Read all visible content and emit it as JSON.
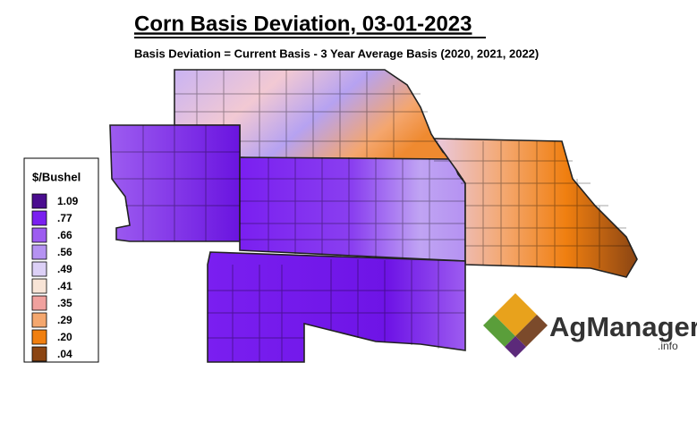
{
  "title": "Corn Basis Deviation, 03-01-2023",
  "subtitle": "Basis Deviation = Current Basis - 3 Year Average Basis (2020, 2021, 2022)",
  "legend": {
    "title": "$/Bushel",
    "items": [
      {
        "label": "1.09",
        "color": "#4a0d8f"
      },
      {
        "label": ".77",
        "color": "#7a1ff0"
      },
      {
        "label": ".66",
        "color": "#9d5cf0"
      },
      {
        "label": ".56",
        "color": "#b592f2"
      },
      {
        "label": ".49",
        "color": "#dcd0f6"
      },
      {
        "label": ".41",
        "color": "#f8e4d6"
      },
      {
        "label": ".35",
        "color": "#f0a19e"
      },
      {
        "label": ".29",
        "color": "#f4a76e"
      },
      {
        "label": ".20",
        "color": "#f07f10"
      },
      {
        "label": ".04",
        "color": "#8b4513"
      }
    ]
  },
  "logo": {
    "name": "AgManager",
    "suffix": ".info"
  }
}
